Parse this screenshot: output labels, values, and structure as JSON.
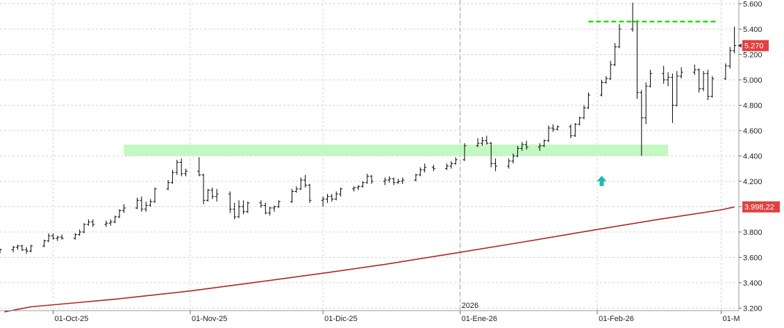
{
  "chart_data": {
    "type": "ohlc",
    "y_ticks": [
      "5.600",
      "5.400",
      "5.200",
      "5.000",
      "4.800",
      "4.600",
      "4.400",
      "4.200",
      "4.000",
      "3.800",
      "3.600",
      "3.400",
      "3.200"
    ],
    "y_tick_values": [
      5600,
      5400,
      5200,
      5000,
      4800,
      4600,
      4400,
      4200,
      4000,
      3800,
      3600,
      3400,
      3200
    ],
    "ylim": [
      3180,
      5630
    ],
    "x_ticks": [
      {
        "label": "01-Oct-25",
        "date": "2025-10-01"
      },
      {
        "label": "01-Nov-25",
        "date": "2025-11-01"
      },
      {
        "label": "01-Dic-25",
        "date": "2025-12-01"
      },
      {
        "label": "01-Ene-26",
        "date": "2026-01-01"
      },
      {
        "label": "01-Feb-26",
        "date": "2026-02-01"
      },
      {
        "label": "01-M",
        "date": "2026-03-01"
      }
    ],
    "year_marker": {
      "label": "2026",
      "date": "2026-01-01"
    },
    "last_price_label": "5.270",
    "last_price": 5270,
    "ma_label": "3.998,22",
    "ma_value": 3998.22,
    "colors": {
      "bars": "#000000",
      "ma": "#b22222",
      "last_price_bg": "#e04040",
      "resistance": "#22dd00",
      "zone": "#bdf7bd",
      "arrow": "#22b8b8"
    },
    "resistance_line": {
      "value": 5460,
      "from": "2026-01-30",
      "to": "2026-02-28"
    },
    "support_zone": {
      "low": 4400,
      "high": 4490,
      "from": "2025-10-17",
      "to": "2026-02-17"
    },
    "signal_arrow": {
      "date": "2026-02-02",
      "value": 4200,
      "direction": "up"
    },
    "moving_average": [
      [
        "2025-09-20",
        3170
      ],
      [
        "2025-09-26",
        3210
      ],
      [
        "2025-10-15",
        3270
      ],
      [
        "2025-11-01",
        3335
      ],
      [
        "2025-11-15",
        3400
      ],
      [
        "2025-12-01",
        3475
      ],
      [
        "2025-12-15",
        3545
      ],
      [
        "2026-01-01",
        3640
      ],
      [
        "2026-01-15",
        3720
      ],
      [
        "2026-02-01",
        3820
      ],
      [
        "2026-02-15",
        3900
      ],
      [
        "2026-03-01",
        3975
      ],
      [
        "2026-03-04",
        3998
      ]
    ],
    "ohlc": [
      [
        "2025-09-19",
        3650,
        3670,
        3630,
        3660
      ],
      [
        "2025-09-22",
        3660,
        3690,
        3640,
        3680
      ],
      [
        "2025-09-23",
        3680,
        3700,
        3660,
        3690
      ],
      [
        "2025-09-24",
        3690,
        3700,
        3650,
        3660
      ],
      [
        "2025-09-25",
        3660,
        3680,
        3630,
        3650
      ],
      [
        "2025-09-26",
        3650,
        3700,
        3640,
        3690
      ],
      [
        "2025-09-29",
        3690,
        3740,
        3680,
        3730
      ],
      [
        "2025-09-30",
        3730,
        3790,
        3720,
        3770
      ],
      [
        "2025-10-01",
        3770,
        3790,
        3740,
        3750
      ],
      [
        "2025-10-02",
        3750,
        3770,
        3730,
        3760
      ],
      [
        "2025-10-03",
        3760,
        3780,
        3740,
        3750
      ],
      [
        "2025-10-06",
        3750,
        3790,
        3740,
        3780
      ],
      [
        "2025-10-07",
        3780,
        3820,
        3770,
        3800
      ],
      [
        "2025-10-08",
        3800,
        3870,
        3790,
        3860
      ],
      [
        "2025-10-09",
        3860,
        3900,
        3850,
        3880
      ],
      [
        "2025-10-10",
        3880,
        3900,
        3840,
        3860
      ],
      [
        "2025-10-13",
        3860,
        3890,
        3840,
        3870
      ],
      [
        "2025-10-14",
        3870,
        3900,
        3850,
        3880
      ],
      [
        "2025-10-15",
        3880,
        3930,
        3870,
        3920
      ],
      [
        "2025-10-16",
        3920,
        3980,
        3910,
        3970
      ],
      [
        "2025-10-17",
        3970,
        4020,
        3950,
        3990
      ],
      [
        "2025-10-20",
        3990,
        4070,
        3980,
        4050
      ],
      [
        "2025-10-21",
        4050,
        4080,
        3960,
        3980
      ],
      [
        "2025-10-22",
        3980,
        4040,
        3960,
        4010
      ],
      [
        "2025-10-23",
        4010,
        4060,
        4000,
        4040
      ],
      [
        "2025-10-24",
        4040,
        4150,
        4030,
        4140
      ],
      [
        "2025-10-27",
        4140,
        4210,
        4130,
        4190
      ],
      [
        "2025-10-28",
        4190,
        4290,
        4180,
        4270
      ],
      [
        "2025-10-29",
        4270,
        4370,
        4250,
        4350
      ],
      [
        "2025-10-30",
        4350,
        4380,
        4240,
        4260
      ],
      [
        "2025-10-31",
        4260,
        4300,
        4240,
        4280
      ],
      [
        "2025-11-03",
        4280,
        4390,
        4240,
        4250
      ],
      [
        "2025-11-04",
        4250,
        4260,
        4020,
        4050
      ],
      [
        "2025-11-05",
        4050,
        4140,
        4040,
        4130
      ],
      [
        "2025-11-06",
        4130,
        4150,
        4060,
        4080
      ],
      [
        "2025-11-07",
        4080,
        4140,
        4040,
        4100
      ],
      [
        "2025-11-10",
        4100,
        4120,
        3950,
        3980
      ],
      [
        "2025-11-11",
        3980,
        4030,
        3900,
        3920
      ],
      [
        "2025-11-12",
        3920,
        4050,
        3910,
        4000
      ],
      [
        "2025-11-13",
        4000,
        4050,
        3940,
        3960
      ],
      [
        "2025-11-14",
        3960,
        4040,
        3950,
        4030
      ],
      [
        "2025-11-17",
        4030,
        4050,
        3990,
        4010
      ],
      [
        "2025-11-18",
        4010,
        4030,
        3940,
        3950
      ],
      [
        "2025-11-19",
        3950,
        4000,
        3930,
        3990
      ],
      [
        "2025-11-20",
        3990,
        4010,
        3960,
        4000
      ],
      [
        "2025-11-21",
        4000,
        4050,
        3990,
        4040
      ],
      [
        "2025-11-24",
        4040,
        4140,
        4030,
        4120
      ],
      [
        "2025-11-25",
        4120,
        4160,
        4110,
        4140
      ],
      [
        "2025-11-26",
        4140,
        4230,
        4130,
        4210
      ],
      [
        "2025-11-27",
        4210,
        4250,
        4150,
        4170
      ],
      [
        "2025-11-28",
        4170,
        4180,
        4030,
        4050
      ],
      [
        "2025-12-01",
        4050,
        4080,
        4000,
        4060
      ],
      [
        "2025-12-02",
        4060,
        4100,
        4030,
        4080
      ],
      [
        "2025-12-03",
        4080,
        4100,
        4040,
        4060
      ],
      [
        "2025-12-04",
        4060,
        4120,
        4050,
        4100
      ],
      [
        "2025-12-05",
        4100,
        4150,
        4080,
        4140
      ],
      [
        "2025-12-08",
        4140,
        4160,
        4120,
        4150
      ],
      [
        "2025-12-09",
        4150,
        4170,
        4130,
        4160
      ],
      [
        "2025-12-10",
        4160,
        4200,
        4150,
        4190
      ],
      [
        "2025-12-11",
        4190,
        4260,
        4180,
        4240
      ],
      [
        "2025-12-12",
        4240,
        4250,
        4180,
        4200
      ],
      [
        "2025-12-15",
        4200,
        4230,
        4170,
        4210
      ],
      [
        "2025-12-16",
        4210,
        4240,
        4190,
        4220
      ],
      [
        "2025-12-17",
        4220,
        4230,
        4170,
        4190
      ],
      [
        "2025-12-18",
        4190,
        4220,
        4180,
        4200
      ],
      [
        "2025-12-19",
        4200,
        4230,
        4180,
        4210
      ],
      [
        "2025-12-22",
        4210,
        4260,
        4200,
        4250
      ],
      [
        "2025-12-23",
        4250,
        4310,
        4240,
        4290
      ],
      [
        "2025-12-24",
        4290,
        4340,
        4270,
        4310
      ],
      [
        "2025-12-26",
        4310,
        4330,
        4280,
        4300
      ],
      [
        "2025-12-29",
        4300,
        4340,
        4290,
        4320
      ],
      [
        "2025-12-30",
        4320,
        4360,
        4300,
        4340
      ],
      [
        "2025-12-31",
        4340,
        4390,
        4330,
        4370
      ],
      [
        "2026-01-02",
        4370,
        4500,
        4360,
        4480
      ],
      [
        "2026-01-05",
        4480,
        4540,
        4470,
        4500
      ],
      [
        "2026-01-06",
        4500,
        4550,
        4480,
        4520
      ],
      [
        "2026-01-07",
        4520,
        4560,
        4490,
        4500
      ],
      [
        "2026-01-08",
        4500,
        4510,
        4310,
        4340
      ],
      [
        "2026-01-09",
        4340,
        4380,
        4280,
        4320
      ],
      [
        "2026-01-12",
        4320,
        4380,
        4300,
        4360
      ],
      [
        "2026-01-13",
        4360,
        4420,
        4340,
        4400
      ],
      [
        "2026-01-14",
        4400,
        4480,
        4390,
        4460
      ],
      [
        "2026-01-15",
        4460,
        4510,
        4440,
        4490
      ],
      [
        "2026-01-16",
        4490,
        4520,
        4450,
        4470
      ],
      [
        "2026-01-19",
        4470,
        4500,
        4440,
        4480
      ],
      [
        "2026-01-20",
        4480,
        4530,
        4470,
        4520
      ],
      [
        "2026-01-21",
        4520,
        4640,
        4510,
        4620
      ],
      [
        "2026-01-22",
        4620,
        4650,
        4590,
        4610
      ],
      [
        "2026-01-23",
        4610,
        4640,
        4600,
        4630
      ],
      [
        "2026-01-26",
        4630,
        4650,
        4540,
        4560
      ],
      [
        "2026-01-27",
        4560,
        4660,
        4550,
        4650
      ],
      [
        "2026-01-28",
        4650,
        4710,
        4640,
        4700
      ],
      [
        "2026-01-29",
        4700,
        4800,
        4690,
        4780
      ],
      [
        "2026-01-30",
        4780,
        4900,
        4770,
        4880
      ],
      [
        "2026-02-02",
        4880,
        5000,
        4870,
        4980
      ],
      [
        "2026-02-03",
        4980,
        5030,
        4970,
        5010
      ],
      [
        "2026-02-04",
        5010,
        5150,
        5000,
        5120
      ],
      [
        "2026-02-05",
        5120,
        5290,
        5110,
        5260
      ],
      [
        "2026-02-06",
        5260,
        5440,
        5250,
        5400
      ],
      [
        "2026-02-09",
        5400,
        5610,
        5380,
        5460
      ],
      [
        "2026-02-10",
        5460,
        5470,
        4850,
        4900
      ],
      [
        "2026-02-11",
        4900,
        4920,
        4400,
        4700
      ],
      [
        "2026-02-12",
        4700,
        4980,
        4650,
        4950
      ],
      [
        "2026-02-13",
        4950,
        5080,
        4940,
        5050
      ],
      [
        "2026-02-16",
        5050,
        5110,
        4970,
        5000
      ],
      [
        "2026-02-17",
        5000,
        5060,
        4950,
        5020
      ],
      [
        "2026-02-18",
        5020,
        5050,
        4660,
        4800
      ],
      [
        "2026-02-19",
        4800,
        5070,
        4790,
        5030
      ],
      [
        "2026-02-20",
        5030,
        5100,
        5010,
        5060
      ],
      [
        "2026-02-23",
        5060,
        5120,
        5040,
        5080
      ],
      [
        "2026-02-24",
        5080,
        5090,
        4900,
        4930
      ],
      [
        "2026-02-25",
        4930,
        5070,
        4910,
        5050
      ],
      [
        "2026-02-26",
        5050,
        5080,
        4840,
        4870
      ],
      [
        "2026-02-27",
        4870,
        5030,
        4860,
        5010
      ],
      [
        "2026-03-02",
        5010,
        5130,
        5000,
        5110
      ],
      [
        "2026-03-03",
        5110,
        5260,
        5090,
        5230
      ],
      [
        "2026-03-04",
        5230,
        5420,
        5210,
        5270
      ]
    ]
  }
}
